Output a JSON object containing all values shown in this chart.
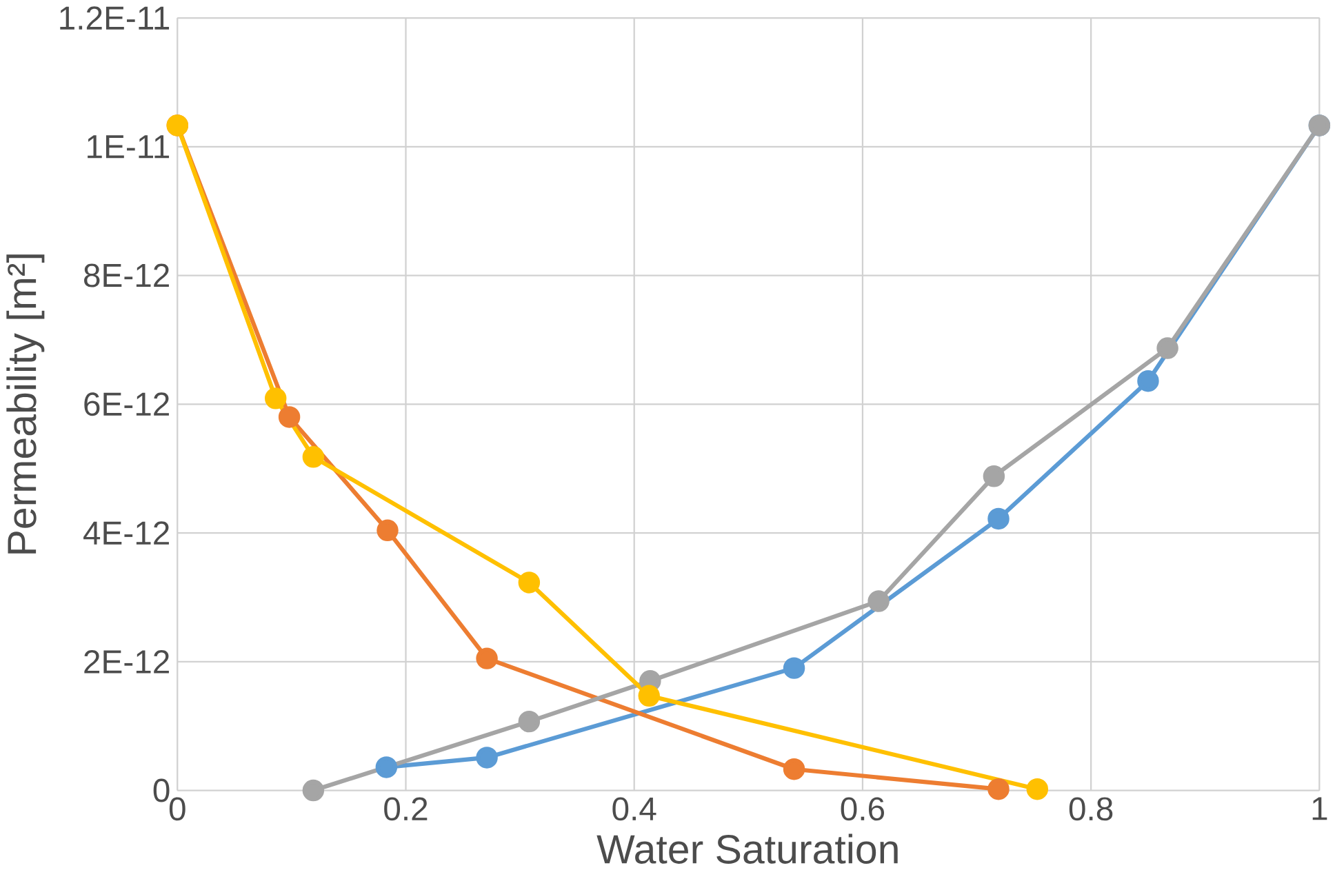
{
  "chart_data": {
    "type": "line",
    "xlabel": "Water Saturation",
    "ylabel": "Permeability [m²]",
    "xlim": [
      0,
      1
    ],
    "xticks": [
      0,
      0.2,
      0.4,
      0.6,
      0.8,
      1
    ],
    "ylim": [
      0,
      1.2e-11
    ],
    "yticks": [
      0,
      {
        "value": 2e-12,
        "label": "2E-12"
      },
      {
        "value": 4e-12,
        "label": "4E-12"
      },
      {
        "value": 6e-12,
        "label": "6E-12"
      },
      {
        "value": 8e-12,
        "label": "8E-12"
      },
      {
        "value": 1e-11,
        "label": "1E-11"
      },
      {
        "value": 1.2e-11,
        "label": "1.2E-11"
      }
    ],
    "grid": true,
    "marker": "circle",
    "line_style": "solid",
    "series": [
      {
        "color": "#5b9bd5",
        "x": [
          0.183,
          0.271,
          0.54,
          0.719,
          0.85,
          1.0
        ],
        "values": [
          3.6e-13,
          5.1e-13,
          1.9e-12,
          4.22e-12,
          6.36e-12,
          1.033e-11
        ]
      },
      {
        "color": "#ed7d31",
        "x": [
          0,
          0.098,
          0.184,
          0.271,
          0.54,
          0.719
        ],
        "values": [
          1.033e-11,
          5.8e-12,
          4.04e-12,
          2.05e-12,
          3.3e-13,
          2e-14
        ]
      },
      {
        "color": "#a5a5a5",
        "x": [
          0.119,
          0.308,
          0.414,
          0.614,
          0.715,
          0.867,
          1.0
        ],
        "values": [
          0,
          1.07e-12,
          1.7e-12,
          2.94e-12,
          4.88e-12,
          6.87e-12,
          1.033e-11
        ]
      },
      {
        "color": "#ffc000",
        "x": [
          0,
          0.086,
          0.119,
          0.308,
          0.413,
          0.753
        ],
        "values": [
          1.033e-11,
          6.09e-12,
          5.18e-12,
          3.23e-12,
          1.47e-12,
          2e-14
        ]
      }
    ]
  }
}
